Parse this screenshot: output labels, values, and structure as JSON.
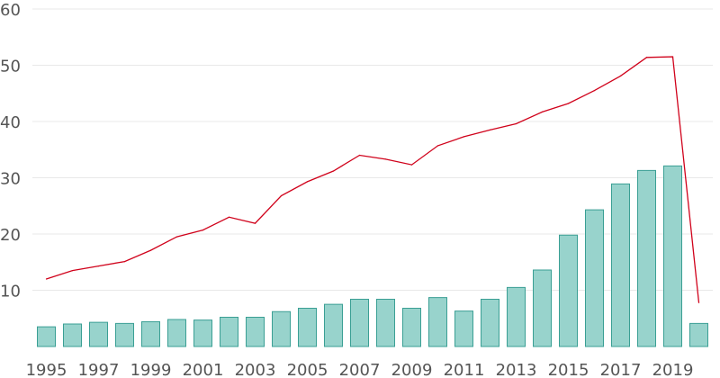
{
  "chart_data": {
    "type": "bar",
    "grid": true,
    "legend": "none",
    "ylim": [
      0,
      60
    ],
    "yticks": [
      10,
      20,
      30,
      40,
      50,
      60
    ],
    "x": [
      1995,
      1996,
      1997,
      1998,
      1999,
      2000,
      2001,
      2002,
      2003,
      2004,
      2005,
      2006,
      2007,
      2008,
      2009,
      2010,
      2011,
      2012,
      2013,
      2014,
      2015,
      2016,
      2017,
      2018,
      2019,
      2020
    ],
    "xtick_labels": [
      "1995",
      "1997",
      "1999",
      "2001",
      "2003",
      "2005",
      "2007",
      "2009",
      "2011",
      "2013",
      "2015",
      "2017",
      "2019"
    ],
    "series": [
      {
        "type": "bar",
        "color": "#98d3cc",
        "values": [
          3.5,
          4,
          4.3,
          4.1,
          4.4,
          4.8,
          4.7,
          5.2,
          5.2,
          6.2,
          6.8,
          7.5,
          8.4,
          8.4,
          6.8,
          8.7,
          6.3,
          8.4,
          10.5,
          13.6,
          19.8,
          24.3,
          28.9,
          31.3,
          32.1,
          4.1
        ]
      },
      {
        "type": "line",
        "color": "#d0021b",
        "values": [
          12,
          13.5,
          14.3,
          15.1,
          17.1,
          19.5,
          20.7,
          23,
          21.9,
          26.8,
          29.3,
          31.2,
          34,
          33.3,
          32.3,
          35.7,
          37.3,
          38.5,
          39.6,
          41.7,
          43.2,
          45.5,
          48.1,
          51.4,
          51.5,
          7.8
        ]
      }
    ]
  }
}
